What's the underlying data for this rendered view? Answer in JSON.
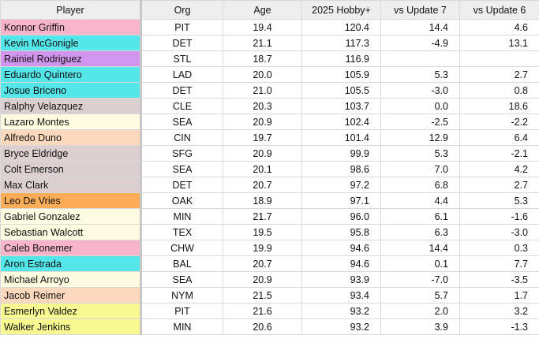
{
  "headers": [
    "Player",
    "Org",
    "Age",
    "2025 Hobby+",
    "vs Update 7",
    "vs Update 6"
  ],
  "colors": {
    "pink": "#f8b4cb",
    "cyan": "#55e6ea",
    "purple": "#d295ee",
    "taupe": "#dccfcf",
    "cream": "#fdfbe0",
    "peach": "#fcd9bd",
    "orange": "#fdad57",
    "yellow": "#f8f990"
  },
  "rows": [
    {
      "player": "Konnor Griffin",
      "org": "PIT",
      "age": "19.4",
      "hobby": "120.4",
      "u7": "14.4",
      "u6": "4.6",
      "color": "#f8b4cb"
    },
    {
      "player": "Kevin McGonigle",
      "org": "DET",
      "age": "21.1",
      "hobby": "117.3",
      "u7": "-4.9",
      "u6": "13.1",
      "color": "#55e6ea"
    },
    {
      "player": "Rainiel Rodriguez",
      "org": "STL",
      "age": "18.7",
      "hobby": "116.9",
      "u7": "",
      "u6": "",
      "color": "#d295ee"
    },
    {
      "player": "Eduardo Quintero",
      "org": "LAD",
      "age": "20.0",
      "hobby": "105.9",
      "u7": "5.3",
      "u6": "2.7",
      "color": "#55e6ea"
    },
    {
      "player": "Josue Briceno",
      "org": "DET",
      "age": "21.0",
      "hobby": "105.5",
      "u7": "-3.0",
      "u6": "0.8",
      "color": "#55e6ea"
    },
    {
      "player": "Ralphy Velazquez",
      "org": "CLE",
      "age": "20.3",
      "hobby": "103.7",
      "u7": "0.0",
      "u6": "18.6",
      "color": "#dccfcf"
    },
    {
      "player": "Lazaro Montes",
      "org": "SEA",
      "age": "20.9",
      "hobby": "102.4",
      "u7": "-2.5",
      "u6": "-2.2",
      "color": "#fdfbe0"
    },
    {
      "player": "Alfredo Duno",
      "org": "CIN",
      "age": "19.7",
      "hobby": "101.4",
      "u7": "12.9",
      "u6": "6.4",
      "color": "#fcd9bd"
    },
    {
      "player": "Bryce Eldridge",
      "org": "SFG",
      "age": "20.9",
      "hobby": "99.9",
      "u7": "5.3",
      "u6": "-2.1",
      "color": "#dccfcf"
    },
    {
      "player": "Colt Emerson",
      "org": "SEA",
      "age": "20.1",
      "hobby": "98.6",
      "u7": "7.0",
      "u6": "4.2",
      "color": "#dccfcf"
    },
    {
      "player": "Max Clark",
      "org": "DET",
      "age": "20.7",
      "hobby": "97.2",
      "u7": "6.8",
      "u6": "2.7",
      "color": "#dccfcf"
    },
    {
      "player": "Leo De Vries",
      "org": "OAK",
      "age": "18.9",
      "hobby": "97.1",
      "u7": "4.4",
      "u6": "5.3",
      "color": "#fdad57"
    },
    {
      "player": "Gabriel Gonzalez",
      "org": "MIN",
      "age": "21.7",
      "hobby": "96.0",
      "u7": "6.1",
      "u6": "-1.6",
      "color": "#fdfbe0"
    },
    {
      "player": "Sebastian Walcott",
      "org": "TEX",
      "age": "19.5",
      "hobby": "95.8",
      "u7": "6.3",
      "u6": "-3.0",
      "color": "#fdfbe0"
    },
    {
      "player": "Caleb Bonemer",
      "org": "CHW",
      "age": "19.9",
      "hobby": "94.6",
      "u7": "14.4",
      "u6": "0.3",
      "color": "#f8b4cb"
    },
    {
      "player": "Aron Estrada",
      "org": "BAL",
      "age": "20.7",
      "hobby": "94.6",
      "u7": "0.1",
      "u6": "7.7",
      "color": "#55e6ea"
    },
    {
      "player": "Michael Arroyo",
      "org": "SEA",
      "age": "20.9",
      "hobby": "93.9",
      "u7": "-7.0",
      "u6": "-3.5",
      "color": "#fdfbe0"
    },
    {
      "player": "Jacob Reimer",
      "org": "NYM",
      "age": "21.5",
      "hobby": "93.4",
      "u7": "5.7",
      "u6": "1.7",
      "color": "#fcd9bd"
    },
    {
      "player": "Esmerlyn Valdez",
      "org": "PIT",
      "age": "21.6",
      "hobby": "93.2",
      "u7": "2.0",
      "u6": "3.2",
      "color": "#f8f990"
    },
    {
      "player": "Walker Jenkins",
      "org": "MIN",
      "age": "20.6",
      "hobby": "93.2",
      "u7": "3.9",
      "u6": "-1.3",
      "color": "#f8f990"
    }
  ]
}
